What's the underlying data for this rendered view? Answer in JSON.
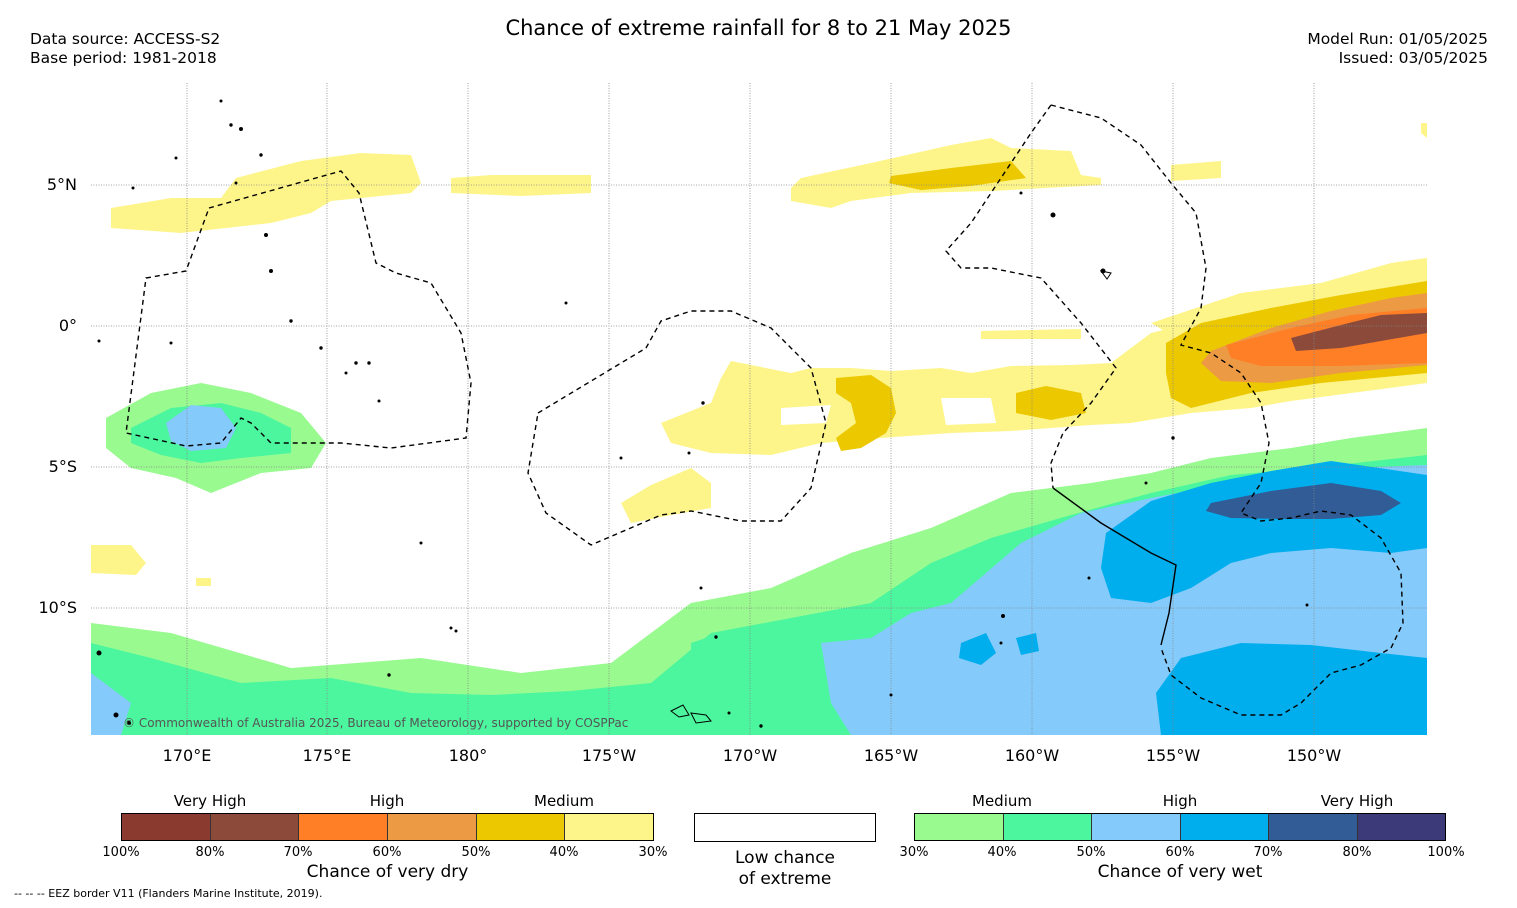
{
  "title": "Chance of extreme rainfall for 8 to 21 May 2025",
  "data_source": "Data source: ACCESS-S2",
  "base_period": "Base period: 1981-2018",
  "model_run": "Model Run: 01/05/2025",
  "issued": "Issued: 03/05/2025",
  "lat_labels": [
    "5°N",
    "0°",
    "5°S",
    "10°S"
  ],
  "lon_labels": [
    "170°E",
    "175°E",
    "180°",
    "175°W",
    "170°W",
    "165°W",
    "160°W",
    "155°W",
    "150°W"
  ],
  "copyright": "© Commonwealth of Australia 2025, Bureau of Meteorology, supported by COSPPac",
  "dry_legend": {
    "title": "Chance of very dry",
    "bands": [
      "Very High",
      "High",
      "Medium"
    ],
    "ticks": [
      "100%",
      "80%",
      "70%",
      "60%",
      "50%",
      "40%",
      "30%"
    ],
    "colors": [
      "#8b3a30",
      "#8b4a3a",
      "#ff7f27",
      "#ed9a45",
      "#ecc800",
      "#fef58a"
    ]
  },
  "low_legend": {
    "line1": "Low chance",
    "line2": "of extreme"
  },
  "wet_legend": {
    "title": "Chance of very wet",
    "bands": [
      "Medium",
      "High",
      "Very High"
    ],
    "ticks": [
      "30%",
      "40%",
      "50%",
      "60%",
      "70%",
      "80%",
      "100%"
    ],
    "colors": [
      "#99fa90",
      "#4cf69e",
      "#84cafb",
      "#00aeed",
      "#315c96",
      "#3c3a78"
    ]
  },
  "eez_note": "--  --  -- EEZ border V11 (Flanders Marine Institute, 2019)."
}
